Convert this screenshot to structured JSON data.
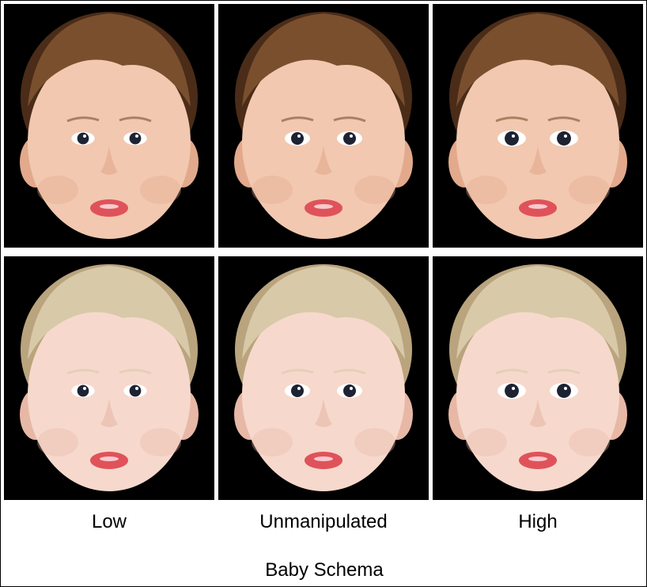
{
  "columns": [
    {
      "label": "Low",
      "eye_scale": 0.92
    },
    {
      "label": "Unmanipulated",
      "eye_scale": 1.0
    },
    {
      "label": "High",
      "eye_scale": 1.12
    }
  ],
  "rows": [
    {
      "hair": "#7a4f2e",
      "hair_dark": "#4a2c18",
      "skin": "#f2c8b0",
      "skin_shade": "#e3a98c"
    },
    {
      "hair": "#d8c9a8",
      "hair_dark": "#b9a47e",
      "skin": "#f6d9cc",
      "skin_shade": "#e8b8a6"
    }
  ],
  "colors": {
    "background": "#000000",
    "page": "#ffffff",
    "lips": "#e0525a",
    "iris": "#1d2333"
  },
  "axis_title": "Baby Schema"
}
